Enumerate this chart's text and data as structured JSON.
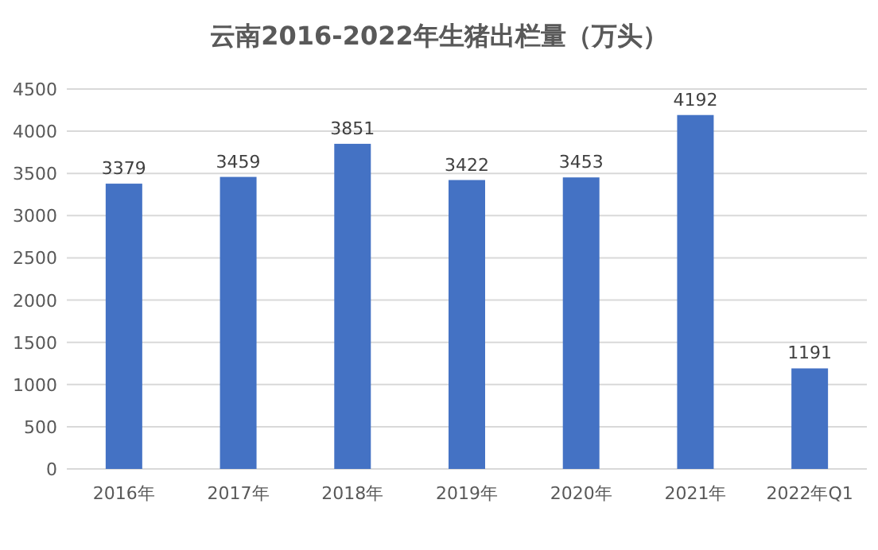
{
  "chart_data": {
    "type": "bar",
    "title": "云南2016-2022年生猪出栏量（万头）",
    "categories": [
      "2016年",
      "2017年",
      "2018年",
      "2019年",
      "2020年",
      "2021年",
      "2022年Q1"
    ],
    "values": [
      3379,
      3459,
      3851,
      3422,
      3453,
      4192,
      1191
    ],
    "color": "#4472c4",
    "ylim": [
      0,
      4500
    ],
    "yticks": [
      0,
      500,
      1000,
      1500,
      2000,
      2500,
      3000,
      3500,
      4000,
      4500
    ],
    "grid": "y",
    "data_labels": true
  }
}
